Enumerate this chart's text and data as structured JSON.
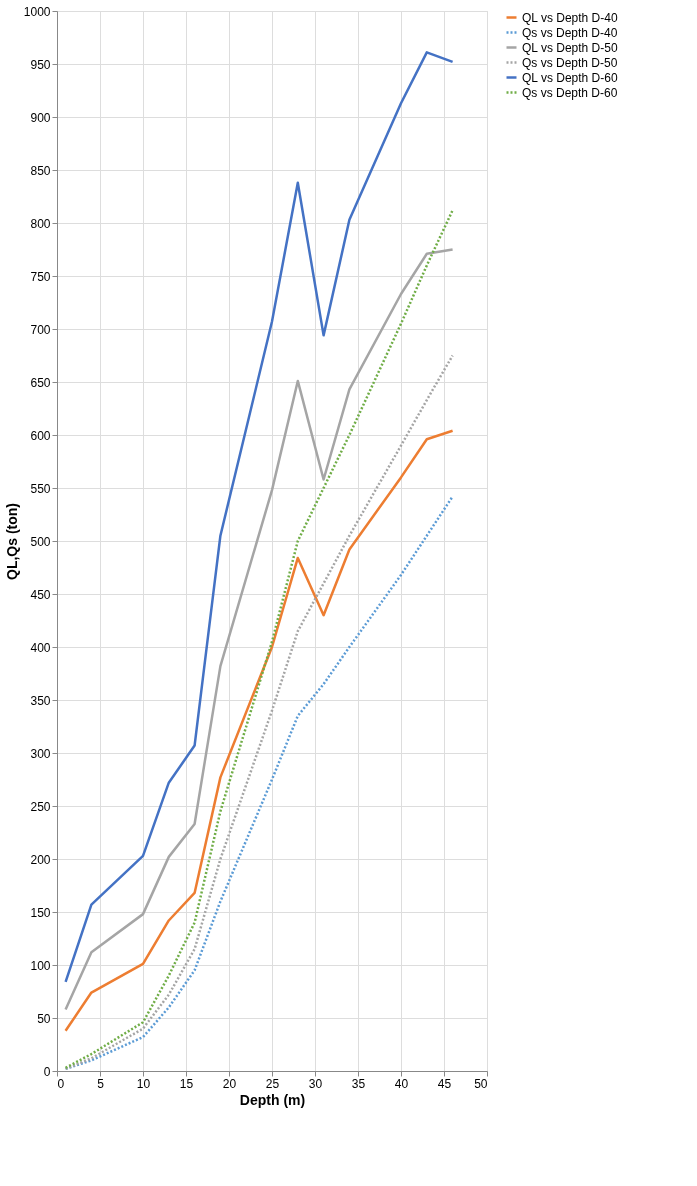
{
  "chart_data": {
    "type": "line",
    "xlabel": "Depth (m)",
    "ylabel": "QL,Qs (ton)",
    "x": [
      1,
      4,
      10,
      13,
      16,
      19,
      25,
      28,
      31,
      34,
      40,
      43,
      46
    ],
    "series": [
      {
        "name": "QL vs Depth D-40",
        "color": "#ed7d31",
        "line_style": "solid",
        "values": [
          38,
          74,
          101,
          142,
          168,
          277,
          400,
          484,
          430,
          492,
          560,
          596,
          604
        ]
      },
      {
        "name": "Qs vs Depth D-40",
        "color": "#5b9bd5",
        "line_style": "dotted",
        "values": [
          2,
          10,
          32,
          60,
          95,
          160,
          275,
          335,
          365,
          400,
          468,
          505,
          542
        ]
      },
      {
        "name": "QL vs Depth D-50",
        "color": "#a5a5a5",
        "line_style": "solid",
        "values": [
          58,
          112,
          148,
          202,
          233,
          382,
          548,
          651,
          558,
          643,
          733,
          771,
          775
        ]
      },
      {
        "name": "Qs vs Depth D-50",
        "color": "#a5a5a5",
        "line_style": "dotted",
        "values": [
          2,
          12,
          40,
          72,
          115,
          200,
          340,
          415,
          460,
          505,
          590,
          633,
          675
        ]
      },
      {
        "name": "QL vs Depth D-60",
        "color": "#4472c4",
        "line_style": "solid",
        "values": [
          84,
          157,
          203,
          272,
          307,
          505,
          707,
          838,
          694,
          803,
          913,
          961,
          952
        ]
      },
      {
        "name": "Qs vs Depth D-60",
        "color": "#70ad47",
        "line_style": "dotted",
        "values": [
          3,
          16,
          46,
          90,
          140,
          245,
          405,
          500,
          550,
          600,
          705,
          760,
          812
        ]
      }
    ],
    "xlim": [
      0,
      50
    ],
    "xticks": [
      0,
      5,
      10,
      15,
      20,
      25,
      30,
      35,
      40,
      45,
      50
    ],
    "ylim": [
      0,
      1000
    ],
    "yticks": [
      0,
      50,
      100,
      150,
      200,
      250,
      300,
      350,
      400,
      450,
      500,
      550,
      600,
      650,
      700,
      750,
      800,
      850,
      900,
      950,
      1000
    ],
    "grid": true,
    "legend": "right",
    "marker": "none"
  }
}
